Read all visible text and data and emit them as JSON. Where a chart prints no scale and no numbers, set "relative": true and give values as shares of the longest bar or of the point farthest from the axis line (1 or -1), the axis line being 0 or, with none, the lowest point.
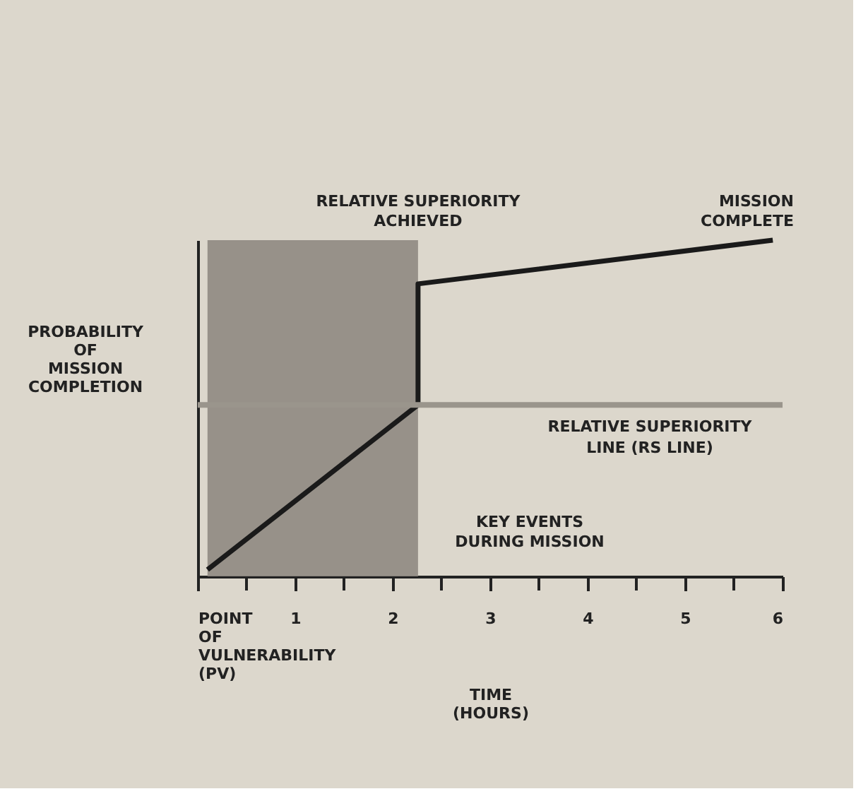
{
  "chart_data": {
    "type": "line",
    "relative": true,
    "xlabel": "TIME (HOURS)",
    "ylabel": "PROBABILITY OF MISSION COMPLETION",
    "x": [
      0.1,
      2.26,
      2.26,
      5.9
    ],
    "series": [
      {
        "color": "#1a1a1a",
        "values": [
          0.02,
          0.51,
          0.87,
          1
        ]
      }
    ],
    "xlim": [
      0,
      6
    ],
    "xticks": [
      {
        "value": 0,
        "label": "POINT OF VULNERABILITY (PV)"
      },
      {
        "value": 0.5,
        "label": null
      },
      1,
      {
        "value": 1.5,
        "label": null
      },
      2,
      {
        "value": 2.5,
        "label": null
      },
      3,
      {
        "value": 3.5,
        "label": null
      },
      4,
      {
        "value": 4.5,
        "label": null
      },
      5,
      {
        "value": 5.5,
        "label": null
      },
      6
    ],
    "ref_lines": [
      {
        "axis": "y",
        "value": 0.51,
        "label": "RELATIVE SUPERIORITY LINE (RS LINE)",
        "color": "#9a958c"
      }
    ],
    "bands": [
      {
        "axis": "x",
        "from": 0.1,
        "to": 2.26,
        "color": "#8f8a82"
      }
    ],
    "annotations": [
      {
        "text": "RELATIVE SUPERIORITY ACHIEVED",
        "x": 2.26,
        "y": 1
      },
      "MISSION COMPLETE",
      "KEY EVENTS DURING MISSION"
    ],
    "grid": false,
    "marker": "none",
    "line_style": "solid"
  }
}
